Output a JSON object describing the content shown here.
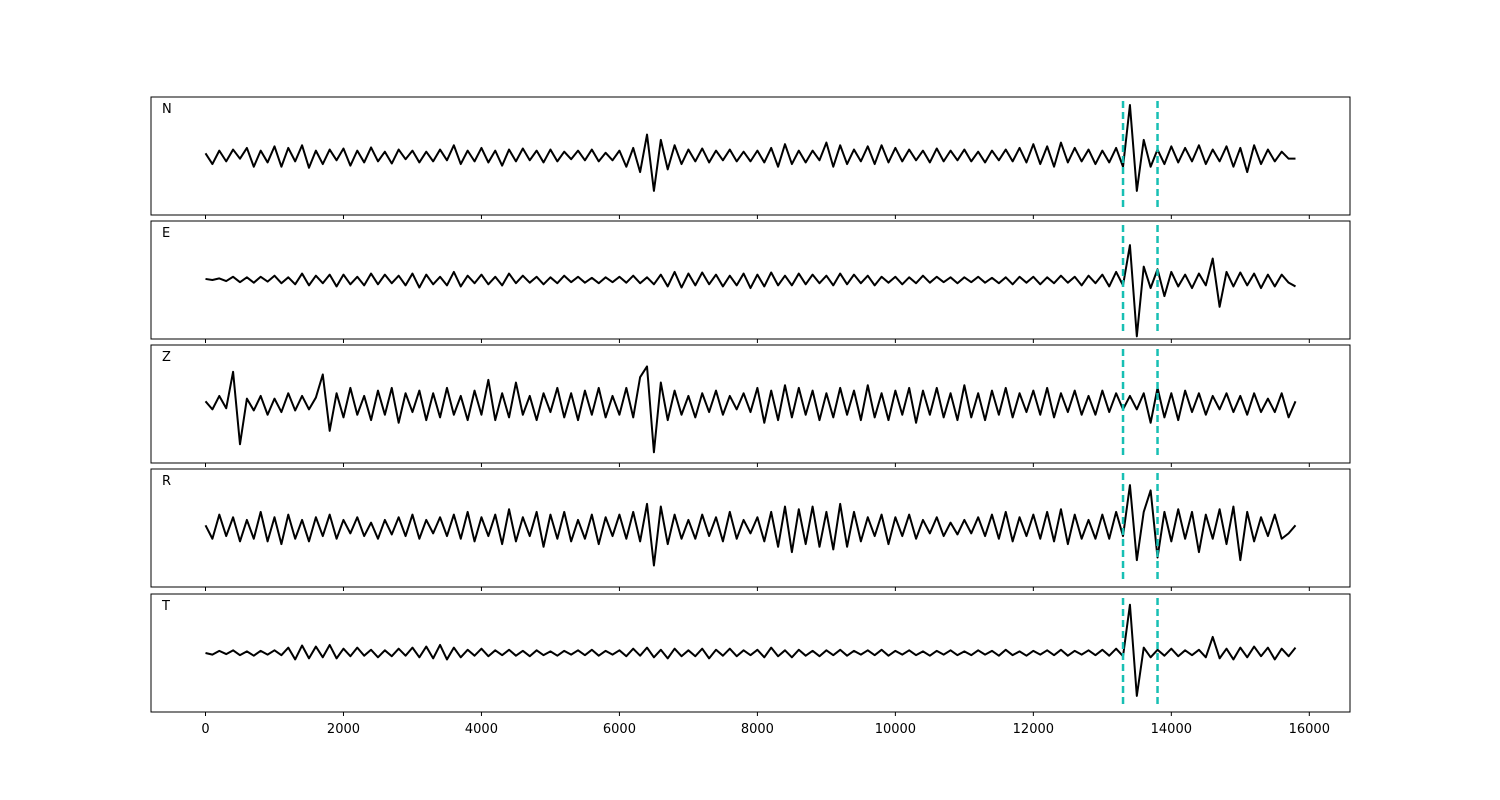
{
  "chart_data": {
    "type": "line",
    "x": [
      0,
      100,
      200,
      300,
      400,
      500,
      600,
      700,
      800,
      900,
      1000,
      1100,
      1200,
      1300,
      1400,
      1500,
      1600,
      1700,
      1800,
      1900,
      2000,
      2100,
      2200,
      2300,
      2400,
      2500,
      2600,
      2700,
      2800,
      2900,
      3000,
      3100,
      3200,
      3300,
      3400,
      3500,
      3600,
      3700,
      3800,
      3900,
      4000,
      4100,
      4200,
      4300,
      4400,
      4500,
      4600,
      4700,
      4800,
      4900,
      5000,
      5100,
      5200,
      5300,
      5400,
      5500,
      5600,
      5700,
      5800,
      5900,
      6000,
      6100,
      6200,
      6300,
      6400,
      6500,
      6600,
      6700,
      6800,
      6900,
      7000,
      7100,
      7200,
      7300,
      7400,
      7500,
      7600,
      7700,
      7800,
      7900,
      8000,
      8100,
      8200,
      8300,
      8400,
      8500,
      8600,
      8700,
      8800,
      8900,
      9000,
      9100,
      9200,
      9300,
      9400,
      9500,
      9600,
      9700,
      9800,
      9900,
      10000,
      10100,
      10200,
      10300,
      10400,
      10500,
      10600,
      10700,
      10800,
      10900,
      11000,
      11100,
      11200,
      11300,
      11400,
      11500,
      11600,
      11700,
      11800,
      11900,
      12000,
      12100,
      12200,
      12300,
      12400,
      12500,
      12600,
      12700,
      12800,
      12900,
      13000,
      13100,
      13200,
      13300,
      13400,
      13500,
      13600,
      13700,
      13800,
      13900,
      14000,
      14100,
      14200,
      14300,
      14400,
      14500,
      14600,
      14700,
      14800,
      14900,
      15000,
      15100,
      15200,
      15300,
      15400,
      15500,
      15600,
      15700,
      15800
    ],
    "xlim": [
      -790,
      16590
    ],
    "xticks": [
      0,
      2000,
      4000,
      6000,
      8000,
      10000,
      12000,
      14000,
      16000
    ],
    "ylim": [
      -1.1,
      1.1
    ],
    "vlines": [
      13300,
      13800
    ],
    "vline_color": "#17bfb4",
    "series": [
      {
        "name": "N",
        "color": "#000000",
        "values": [
          0.05,
          -0.15,
          0.1,
          -0.1,
          0.12,
          -0.05,
          0.15,
          -0.2,
          0.1,
          -0.12,
          0.18,
          -0.2,
          0.15,
          -0.1,
          0.2,
          -0.22,
          0.1,
          -0.15,
          0.12,
          -0.08,
          0.14,
          -0.18,
          0.1,
          -0.12,
          0.16,
          -0.1,
          0.08,
          -0.14,
          0.12,
          -0.06,
          0.1,
          -0.12,
          0.08,
          -0.1,
          0.12,
          -0.08,
          0.2,
          -0.15,
          0.1,
          -0.1,
          0.15,
          -0.12,
          0.1,
          -0.18,
          0.12,
          -0.1,
          0.14,
          -0.08,
          0.1,
          -0.12,
          0.12,
          -0.1,
          0.08,
          -0.06,
          0.1,
          -0.08,
          0.12,
          -0.1,
          0.06,
          -0.08,
          0.1,
          -0.2,
          0.15,
          -0.3,
          0.4,
          -0.65,
          0.3,
          -0.25,
          0.2,
          -0.15,
          0.12,
          -0.1,
          0.14,
          -0.12,
          0.1,
          -0.08,
          0.12,
          -0.1,
          0.08,
          -0.1,
          0.1,
          -0.12,
          0.15,
          -0.2,
          0.22,
          -0.15,
          0.1,
          -0.12,
          0.1,
          -0.08,
          0.25,
          -0.2,
          0.2,
          -0.15,
          0.12,
          -0.1,
          0.18,
          -0.15,
          0.2,
          -0.12,
          0.15,
          -0.1,
          0.12,
          -0.08,
          0.1,
          -0.12,
          0.14,
          -0.1,
          0.1,
          -0.08,
          0.12,
          -0.1,
          0.08,
          -0.12,
          0.1,
          -0.08,
          0.12,
          -0.1,
          0.15,
          -0.12,
          0.22,
          -0.15,
          0.18,
          -0.2,
          0.25,
          -0.12,
          0.15,
          -0.1,
          0.12,
          -0.15,
          0.1,
          -0.12,
          0.15,
          -0.2,
          0.95,
          -0.65,
          0.3,
          -0.2,
          0.12,
          -0.15,
          0.18,
          -0.12,
          0.15,
          -0.1,
          0.2,
          -0.15,
          0.12,
          -0.1,
          0.18,
          -0.2,
          0.15,
          -0.3,
          0.2,
          -0.15,
          0.12,
          -0.1,
          0.08,
          -0.05,
          -0.05
        ]
      },
      {
        "name": "E",
        "color": "#000000",
        "values": [
          0.02,
          0,
          0.03,
          -0.02,
          0.06,
          -0.04,
          0.05,
          -0.05,
          0.06,
          -0.03,
          0.08,
          -0.06,
          0.05,
          -0.08,
          0.12,
          -0.1,
          0.08,
          -0.06,
          0.1,
          -0.12,
          0.1,
          -0.08,
          0.06,
          -0.1,
          0.12,
          -0.08,
          0.1,
          -0.06,
          0.08,
          -0.1,
          0.12,
          -0.14,
          0.1,
          -0.08,
          0.06,
          -0.1,
          0.15,
          -0.12,
          0.08,
          -0.06,
          0.1,
          -0.08,
          0.06,
          -0.1,
          0.12,
          -0.06,
          0.08,
          -0.05,
          0.06,
          -0.08,
          0.05,
          -0.06,
          0.08,
          -0.04,
          0.06,
          -0.05,
          0.04,
          -0.06,
          0.05,
          -0.04,
          0.06,
          -0.05,
          0.08,
          -0.06,
          0.05,
          -0.08,
          0.1,
          -0.12,
          0.15,
          -0.14,
          0.12,
          -0.1,
          0.14,
          -0.08,
          0.1,
          -0.12,
          0.08,
          -0.1,
          0.12,
          -0.15,
          0.1,
          -0.12,
          0.14,
          -0.1,
          0.08,
          -0.1,
          0.12,
          -0.08,
          0.1,
          -0.06,
          0.08,
          -0.1,
          0.12,
          -0.08,
          0.1,
          -0.06,
          0.08,
          -0.1,
          0.06,
          -0.05,
          0.06,
          -0.08,
          0.05,
          -0.06,
          0.08,
          -0.05,
          0.06,
          -0.04,
          0.05,
          -0.06,
          0.05,
          -0.04,
          0.06,
          -0.05,
          0.04,
          -0.06,
          0.05,
          -0.08,
          0.06,
          -0.05,
          0.06,
          -0.08,
          0.05,
          -0.06,
          0.08,
          -0.05,
          0.06,
          -0.1,
          0.08,
          -0.06,
          0.1,
          -0.12,
          0.15,
          -0.1,
          0.65,
          -1.05,
          0.25,
          -0.15,
          0.2,
          -0.3,
          0.15,
          -0.12,
          0.1,
          -0.15,
          0.12,
          -0.1,
          0.4,
          -0.5,
          0.15,
          -0.12,
          0.14,
          -0.1,
          0.12,
          -0.15,
          0.1,
          -0.12,
          0.1,
          -0.05,
          -0.12
        ]
      },
      {
        "name": "Z",
        "color": "#000000",
        "values": [
          0.05,
          -0.1,
          0.15,
          -0.08,
          0.6,
          -0.75,
          0.1,
          -0.12,
          0.15,
          -0.2,
          0.1,
          -0.15,
          0.2,
          -0.12,
          0.15,
          -0.1,
          0.12,
          0.55,
          -0.5,
          0.2,
          -0.25,
          0.3,
          -0.2,
          0.15,
          -0.3,
          0.25,
          -0.2,
          0.3,
          -0.35,
          0.2,
          -0.15,
          0.25,
          -0.3,
          0.2,
          -0.25,
          0.3,
          -0.2,
          0.15,
          -0.3,
          0.25,
          -0.2,
          0.45,
          -0.3,
          0.2,
          -0.25,
          0.4,
          -0.2,
          0.15,
          -0.3,
          0.2,
          -0.15,
          0.3,
          -0.25,
          0.2,
          -0.3,
          0.25,
          -0.2,
          0.3,
          -0.25,
          0.15,
          -0.2,
          0.3,
          -0.25,
          0.5,
          0.7,
          -0.9,
          0.4,
          -0.3,
          0.25,
          -0.2,
          0.15,
          -0.25,
          0.2,
          -0.15,
          0.25,
          -0.2,
          0.15,
          -0.1,
          0.2,
          -0.15,
          0.3,
          -0.35,
          0.25,
          -0.3,
          0.35,
          -0.25,
          0.3,
          -0.2,
          0.25,
          -0.3,
          0.2,
          -0.25,
          0.3,
          -0.2,
          0.25,
          -0.3,
          0.35,
          -0.25,
          0.2,
          -0.3,
          0.25,
          -0.2,
          0.3,
          -0.35,
          0.25,
          -0.2,
          0.3,
          -0.25,
          0.2,
          -0.3,
          0.35,
          -0.25,
          0.2,
          -0.3,
          0.25,
          -0.2,
          0.3,
          -0.25,
          0.2,
          -0.15,
          0.25,
          -0.2,
          0.3,
          -0.25,
          0.2,
          -0.15,
          0.25,
          -0.2,
          0.15,
          -0.2,
          0.25,
          -0.15,
          0.2,
          -0.1,
          0.15,
          -0.1,
          0.2,
          -0.35,
          0.3,
          -0.25,
          0.2,
          -0.3,
          0.25,
          -0.15,
          0.2,
          -0.2,
          0.15,
          -0.1,
          0.2,
          -0.15,
          0.15,
          -0.2,
          0.2,
          -0.15,
          0.1,
          -0.15,
          0.2,
          -0.25,
          0.05
        ]
      },
      {
        "name": "R",
        "color": "#000000",
        "values": [
          0.05,
          -0.2,
          0.25,
          -0.15,
          0.2,
          -0.25,
          0.15,
          -0.2,
          0.3,
          -0.25,
          0.2,
          -0.3,
          0.25,
          -0.2,
          0.15,
          -0.25,
          0.2,
          -0.15,
          0.25,
          -0.2,
          0.15,
          -0.1,
          0.2,
          -0.15,
          0.1,
          -0.2,
          0.15,
          -0.12,
          0.2,
          -0.15,
          0.25,
          -0.2,
          0.15,
          -0.1,
          0.2,
          -0.15,
          0.25,
          -0.2,
          0.3,
          -0.25,
          0.2,
          -0.15,
          0.25,
          -0.3,
          0.35,
          -0.25,
          0.2,
          -0.15,
          0.3,
          -0.35,
          0.25,
          -0.2,
          0.3,
          -0.25,
          0.15,
          -0.2,
          0.25,
          -0.3,
          0.2,
          -0.15,
          0.25,
          -0.2,
          0.3,
          -0.25,
          0.45,
          -0.7,
          0.4,
          -0.3,
          0.25,
          -0.2,
          0.15,
          -0.2,
          0.25,
          -0.15,
          0.2,
          -0.25,
          0.3,
          -0.2,
          0.15,
          -0.1,
          0.2,
          -0.25,
          0.3,
          -0.35,
          0.4,
          -0.45,
          0.35,
          -0.3,
          0.4,
          -0.35,
          0.3,
          -0.4,
          0.45,
          -0.35,
          0.3,
          -0.25,
          0.2,
          -0.15,
          0.25,
          -0.3,
          0.2,
          -0.15,
          0.25,
          -0.2,
          0.15,
          -0.1,
          0.2,
          -0.15,
          0.1,
          -0.12,
          0.15,
          -0.1,
          0.2,
          -0.15,
          0.25,
          -0.2,
          0.3,
          -0.25,
          0.2,
          -0.15,
          0.25,
          -0.2,
          0.3,
          -0.25,
          0.35,
          -0.3,
          0.25,
          -0.2,
          0.15,
          -0.2,
          0.25,
          -0.2,
          0.3,
          -0.15,
          0.8,
          -0.6,
          0.3,
          0.7,
          -0.55,
          0.3,
          -0.25,
          0.35,
          -0.2,
          0.3,
          -0.45,
          0.25,
          -0.2,
          0.35,
          -0.3,
          0.4,
          -0.6,
          0.3,
          -0.25,
          0.2,
          -0.15,
          0.25,
          -0.2,
          -0.1,
          0.05
        ]
      },
      {
        "name": "T",
        "color": "#000000",
        "values": [
          0,
          -0.03,
          0.04,
          -0.02,
          0.05,
          -0.04,
          0.03,
          -0.05,
          0.04,
          -0.03,
          0.05,
          -0.04,
          0.1,
          -0.12,
          0.14,
          -0.1,
          0.12,
          -0.08,
          0.15,
          -0.1,
          0.08,
          -0.06,
          0.1,
          -0.05,
          0.06,
          -0.08,
          0.05,
          -0.06,
          0.08,
          -0.05,
          0.1,
          -0.08,
          0.12,
          -0.1,
          0.15,
          -0.12,
          0.1,
          -0.08,
          0.06,
          -0.05,
          0.08,
          -0.06,
          0.05,
          -0.04,
          0.06,
          -0.05,
          0.04,
          -0.06,
          0.05,
          -0.04,
          0.03,
          -0.05,
          0.04,
          -0.03,
          0.05,
          -0.04,
          0.06,
          -0.05,
          0.04,
          -0.03,
          0.05,
          -0.06,
          0.08,
          -0.05,
          0.1,
          -0.08,
          0.06,
          -0.1,
          0.08,
          -0.06,
          0.05,
          -0.06,
          0.08,
          -0.1,
          0.06,
          -0.05,
          0.08,
          -0.06,
          0.05,
          -0.04,
          0.06,
          -0.08,
          0.1,
          -0.06,
          0.05,
          -0.08,
          0.06,
          -0.05,
          0.04,
          -0.06,
          0.05,
          -0.04,
          0.06,
          -0.05,
          0.04,
          -0.03,
          0.05,
          -0.04,
          0.06,
          -0.05,
          0.04,
          -0.03,
          0.05,
          -0.04,
          0.03,
          -0.05,
          0.04,
          -0.03,
          0.05,
          -0.04,
          0.03,
          -0.04,
          0.05,
          -0.03,
          0.04,
          -0.05,
          0.06,
          -0.04,
          0.03,
          -0.05,
          0.04,
          -0.03,
          0.05,
          -0.04,
          0.06,
          -0.05,
          0.04,
          -0.03,
          0.05,
          -0.04,
          0.06,
          -0.05,
          0.08,
          -0.06,
          0.9,
          -0.8,
          0.1,
          -0.08,
          0.06,
          -0.05,
          0.08,
          -0.06,
          0.05,
          -0.04,
          0.06,
          -0.08,
          0.3,
          -0.1,
          0.08,
          -0.12,
          0.1,
          -0.08,
          0.12,
          -0.06,
          0.1,
          -0.12,
          0.08,
          -0.06,
          0.1
        ]
      }
    ]
  }
}
